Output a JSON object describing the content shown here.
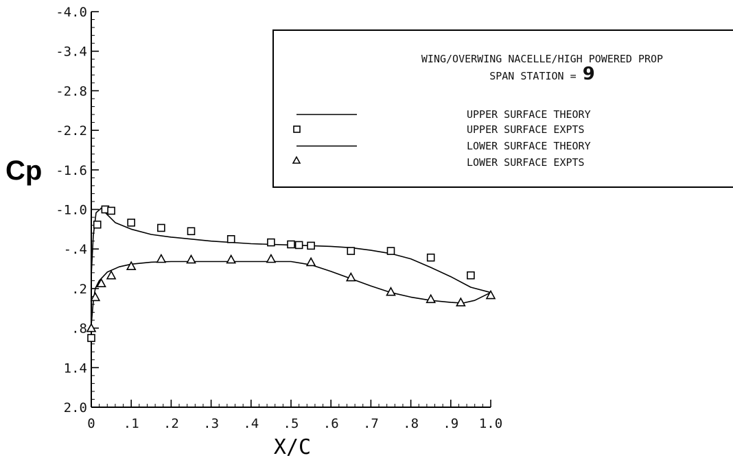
{
  "chart_data": {
    "type": "line",
    "title": "WING/OVERWING NACELLE/HIGH POWERED PROP",
    "subtitle_prefix": "SPAN STATION =",
    "subtitle_value": "9",
    "xlabel": "X/C",
    "ylabel": "Cp",
    "xlim": [
      0,
      1.0
    ],
    "ylim": [
      -4.0,
      2.0
    ],
    "y_inverted": true,
    "grid": false,
    "legend_position": "top-right",
    "x_ticks": [
      0,
      0.1,
      0.2,
      0.3,
      0.4,
      0.5,
      0.6,
      0.7,
      0.8,
      0.9,
      1.0
    ],
    "x_tick_labels": [
      "0",
      ".1",
      ".2",
      ".3",
      ".4",
      ".5",
      ".6",
      ".7",
      ".8",
      ".9",
      "1.0"
    ],
    "y_ticks": [
      -4.0,
      -3.4,
      -2.8,
      -2.2,
      -1.6,
      -1.0,
      -0.4,
      0.2,
      0.8,
      1.4,
      2.0
    ],
    "y_tick_labels": [
      "-4.0",
      "-3.4",
      "-2.8",
      "-2.2",
      "-1.6",
      "-1.0",
      "-.4",
      ".2",
      ".8",
      "1.4",
      "2.0"
    ],
    "series": [
      {
        "name": "UPPER SURFACE THEORY",
        "kind": "line",
        "x": [
          0.0,
          0.005,
          0.012,
          0.025,
          0.04,
          0.06,
          0.1,
          0.15,
          0.2,
          0.3,
          0.4,
          0.5,
          0.6,
          0.65,
          0.7,
          0.75,
          0.8,
          0.85,
          0.9,
          0.95,
          1.0
        ],
        "y": [
          0.0,
          -0.6,
          -0.95,
          -1.02,
          -0.92,
          -0.8,
          -0.7,
          -0.62,
          -0.58,
          -0.52,
          -0.48,
          -0.46,
          -0.44,
          -0.42,
          -0.38,
          -0.33,
          -0.25,
          -0.12,
          0.02,
          0.18,
          0.26
        ]
      },
      {
        "name": "UPPER SURFACE EXPTS",
        "kind": "marker",
        "marker": "square",
        "x": [
          0.0,
          0.015,
          0.035,
          0.05,
          0.1,
          0.175,
          0.25,
          0.35,
          0.45,
          0.5,
          0.52,
          0.55,
          0.65,
          0.75,
          0.85,
          0.95
        ],
        "y": [
          0.95,
          -0.77,
          -1.0,
          -0.98,
          -0.8,
          -0.72,
          -0.67,
          -0.55,
          -0.5,
          -0.47,
          -0.46,
          -0.45,
          -0.37,
          -0.37,
          -0.27,
          0.0
        ]
      },
      {
        "name": "LOWER SURFACE THEORY",
        "kind": "line",
        "x": [
          0.0,
          0.005,
          0.01,
          0.02,
          0.04,
          0.07,
          0.1,
          0.15,
          0.2,
          0.3,
          0.4,
          0.5,
          0.55,
          0.6,
          0.65,
          0.7,
          0.75,
          0.8,
          0.85,
          0.9,
          0.93,
          0.96,
          1.0
        ],
        "y": [
          0.75,
          0.4,
          0.2,
          0.08,
          -0.05,
          -0.13,
          -0.17,
          -0.2,
          -0.21,
          -0.21,
          -0.21,
          -0.21,
          -0.16,
          -0.06,
          0.05,
          0.16,
          0.26,
          0.33,
          0.38,
          0.41,
          0.42,
          0.38,
          0.26
        ]
      },
      {
        "name": "LOWER SURFACE EXPTS",
        "kind": "marker",
        "marker": "triangle",
        "x": [
          0.0,
          0.01,
          0.025,
          0.05,
          0.1,
          0.175,
          0.25,
          0.35,
          0.45,
          0.55,
          0.65,
          0.75,
          0.85,
          0.925,
          1.0
        ],
        "y": [
          0.8,
          0.33,
          0.12,
          0.0,
          -0.14,
          -0.25,
          -0.24,
          -0.24,
          -0.25,
          -0.2,
          0.03,
          0.25,
          0.36,
          0.41,
          0.3
        ]
      }
    ]
  },
  "colors": {
    "ink": "#000000",
    "background": "#ffffff"
  }
}
